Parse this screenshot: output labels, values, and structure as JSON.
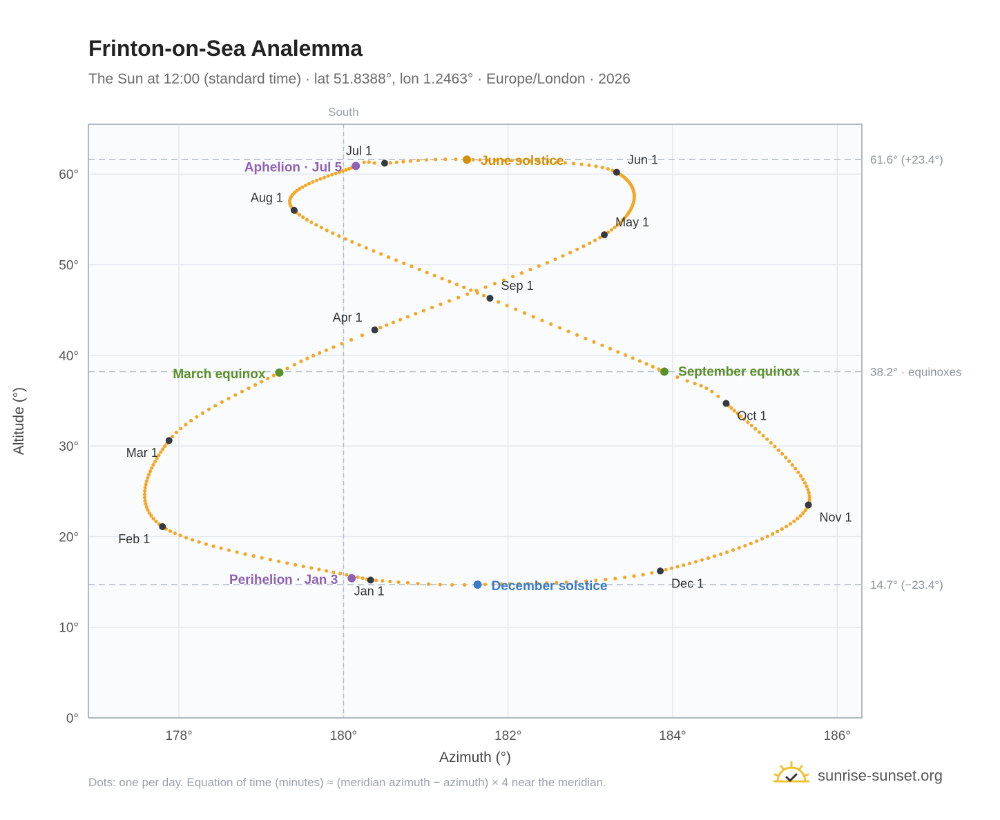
{
  "header": {
    "title": "Frinton-on-Sea Analemma",
    "subtitle": "The Sun at 12:00 (standard time) · lat 51.8388°, lon 1.2463° · Europe/London · 2026"
  },
  "footer": {
    "note": "Dots: one per day. Equation of time (minutes) ≈ (meridian azimuth − azimuth) × 4 near the meridian.",
    "brand": "sunrise-sunset.org"
  },
  "colors": {
    "curve": "#f5a623",
    "month_marker": "#333a44",
    "june_solstice": "#d4900a",
    "december_solstice": "#3a7bc8",
    "equinox": "#5a8f2a",
    "apsis": "#8e62b3",
    "reference_line": "#b4bcc6",
    "plot_bg": "#f9fbfd",
    "grid": "#e3e8ee"
  },
  "chart_data": {
    "type": "scatter",
    "title": "Frinton-on-Sea Analemma",
    "xlabel": "Azimuth (°)",
    "ylabel": "Altitude (°)",
    "xlim": [
      176.9,
      186.3
    ],
    "ylim": [
      0,
      65.5
    ],
    "x_ticks": [
      178,
      180,
      182,
      184,
      186
    ],
    "x_tick_labels": [
      "178°",
      "180°",
      "182°",
      "184°",
      "186°"
    ],
    "y_ticks": [
      0,
      10,
      20,
      30,
      40,
      50,
      60
    ],
    "y_tick_labels": [
      "0°",
      "10°",
      "20°",
      "30°",
      "40°",
      "50°",
      "60°"
    ],
    "grid": true,
    "meridian": {
      "azimuth": 180,
      "label": "South"
    },
    "reference_lines": [
      {
        "altitude": 61.6,
        "label": "61.6° (+23.4°)"
      },
      {
        "altitude": 38.2,
        "label": "38.2° · equinoxes"
      },
      {
        "altitude": 14.7,
        "label": "14.7° (−23.4°)"
      }
    ],
    "curve_keypoints": [
      {
        "day": 0,
        "az": 180.33,
        "alt": 15.2
      },
      {
        "day": 31,
        "az": 177.8,
        "alt": 21.1
      },
      {
        "day": 59,
        "az": 177.88,
        "alt": 30.6
      },
      {
        "day": 78,
        "az": 179.22,
        "alt": 38.1
      },
      {
        "day": 90,
        "az": 180.38,
        "alt": 42.8
      },
      {
        "day": 120,
        "az": 183.17,
        "alt": 53.3
      },
      {
        "day": 151,
        "az": 183.32,
        "alt": 60.2
      },
      {
        "day": 171,
        "az": 181.5,
        "alt": 61.6
      },
      {
        "day": 181,
        "az": 180.5,
        "alt": 61.2
      },
      {
        "day": 185,
        "az": 180.15,
        "alt": 60.9
      },
      {
        "day": 212,
        "az": 179.4,
        "alt": 56.0
      },
      {
        "day": 243,
        "az": 181.78,
        "alt": 46.3
      },
      {
        "day": 265,
        "az": 183.9,
        "alt": 38.2
      },
      {
        "day": 273,
        "az": 184.65,
        "alt": 34.7
      },
      {
        "day": 304,
        "az": 185.65,
        "alt": 23.5
      },
      {
        "day": 334,
        "az": 183.85,
        "alt": 16.2
      },
      {
        "day": 354,
        "az": 181.63,
        "alt": 14.7
      },
      {
        "day": 365,
        "az": 180.33,
        "alt": 15.2
      }
    ],
    "month_markers": [
      {
        "label": "Jan 1",
        "az": 180.33,
        "alt": 15.2
      },
      {
        "label": "Feb 1",
        "az": 177.8,
        "alt": 21.1
      },
      {
        "label": "Mar 1",
        "az": 177.88,
        "alt": 30.6
      },
      {
        "label": "Apr 1",
        "az": 180.38,
        "alt": 42.8
      },
      {
        "label": "May 1",
        "az": 183.17,
        "alt": 53.3
      },
      {
        "label": "Jun 1",
        "az": 183.32,
        "alt": 60.2
      },
      {
        "label": "Jul 1",
        "az": 180.5,
        "alt": 61.2
      },
      {
        "label": "Aug 1",
        "az": 179.4,
        "alt": 56.0
      },
      {
        "label": "Sep 1",
        "az": 181.78,
        "alt": 46.3
      },
      {
        "label": "Oct 1",
        "az": 184.65,
        "alt": 34.7
      },
      {
        "label": "Nov 1",
        "az": 185.65,
        "alt": 23.5
      },
      {
        "label": "Dec 1",
        "az": 183.85,
        "alt": 16.2
      }
    ],
    "events": [
      {
        "label": "June solstice",
        "az": 181.5,
        "alt": 61.6,
        "kind": "june_solstice"
      },
      {
        "label": "December solstice",
        "az": 181.63,
        "alt": 14.7,
        "kind": "december_solstice"
      },
      {
        "label": "March equinox",
        "az": 179.22,
        "alt": 38.1,
        "kind": "equinox"
      },
      {
        "label": "September equinox",
        "az": 183.9,
        "alt": 38.2,
        "kind": "equinox"
      },
      {
        "label": "Aphelion · Jul 5",
        "az": 180.15,
        "alt": 60.9,
        "kind": "apsis"
      },
      {
        "label": "Perihelion · Jan 3",
        "az": 180.1,
        "alt": 15.4,
        "kind": "apsis"
      }
    ]
  }
}
